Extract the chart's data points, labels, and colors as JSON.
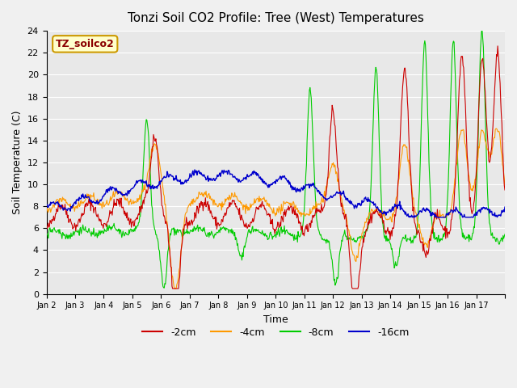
{
  "title": "Tonzi Soil CO2 Profile: Tree (West) Temperatures",
  "xlabel": "Time",
  "ylabel": "Soil Temperature (C)",
  "ylim": [
    0,
    24
  ],
  "yticks": [
    0,
    2,
    4,
    6,
    8,
    10,
    12,
    14,
    16,
    18,
    20,
    22,
    24
  ],
  "xtick_positions": [
    0,
    1,
    2,
    3,
    4,
    5,
    6,
    7,
    8,
    9,
    10,
    11,
    12,
    13,
    14,
    15,
    16
  ],
  "xtick_labels": [
    "Jan 2",
    "Jan 3",
    "Jan 4",
    "Jan 5",
    "Jan 6",
    "Jan 7",
    "Jan 8",
    "Jan 9",
    "Jan 10",
    "Jan 11",
    "Jan 12",
    "Jan 13",
    "Jan 14",
    "Jan 15",
    "Jan 16",
    "Jan 17",
    ""
  ],
  "colors": {
    "2cm": "#cc0000",
    "4cm": "#ff9900",
    "8cm": "#00cc00",
    "16cm": "#0000cc"
  },
  "legend_label": "TZ_soilco2",
  "legend_bg": "#ffffcc",
  "legend_border": "#cc9900",
  "plot_bg": "#e8e8e8",
  "grid_color": "#ffffff",
  "fig_bg": "#f0f0f0"
}
